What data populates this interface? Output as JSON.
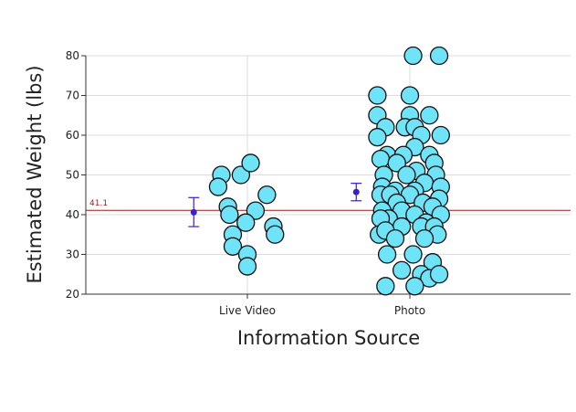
{
  "chart_data": {
    "type": "scatter",
    "title": "",
    "xlabel": "Information Source",
    "ylabel": "Estimated Weight (lbs)",
    "categories": [
      "Live Video",
      "Photo"
    ],
    "ylim": [
      20,
      80
    ],
    "yticks": [
      20,
      30,
      40,
      50,
      60,
      70,
      80
    ],
    "grid": true,
    "reference_line": {
      "value": 41.1,
      "label": "41.1",
      "color": "#9b1c1c"
    },
    "point_color": "#6fe3f7",
    "point_edge_color": "#111111",
    "summary_color": "#3b1fc8",
    "summaries": [
      {
        "category": "Live Video",
        "mean": 40.6,
        "lower": 37.0,
        "upper": 44.3
      },
      {
        "category": "Photo",
        "mean": 45.7,
        "lower": 43.5,
        "upper": 47.9
      }
    ],
    "series": [
      {
        "category": "Live Video",
        "points": [
          {
            "jitter": -0.16,
            "y": 50
          },
          {
            "jitter": -0.04,
            "y": 50
          },
          {
            "jitter": 0.02,
            "y": 53
          },
          {
            "jitter": -0.18,
            "y": 47
          },
          {
            "jitter": 0.12,
            "y": 45
          },
          {
            "jitter": -0.12,
            "y": 42
          },
          {
            "jitter": 0.05,
            "y": 41
          },
          {
            "jitter": -0.11,
            "y": 40
          },
          {
            "jitter": -0.01,
            "y": 38
          },
          {
            "jitter": 0.16,
            "y": 37
          },
          {
            "jitter": -0.09,
            "y": 35
          },
          {
            "jitter": 0.17,
            "y": 35
          },
          {
            "jitter": -0.09,
            "y": 32
          },
          {
            "jitter": 0.0,
            "y": 30
          },
          {
            "jitter": 0.0,
            "y": 27
          }
        ]
      },
      {
        "category": "Photo",
        "points": [
          {
            "jitter": 0.02,
            "y": 80
          },
          {
            "jitter": 0.18,
            "y": 80
          },
          {
            "jitter": -0.2,
            "y": 70
          },
          {
            "jitter": 0.0,
            "y": 70
          },
          {
            "jitter": -0.2,
            "y": 65
          },
          {
            "jitter": 0.0,
            "y": 65
          },
          {
            "jitter": 0.12,
            "y": 65
          },
          {
            "jitter": -0.15,
            "y": 62
          },
          {
            "jitter": -0.03,
            "y": 62
          },
          {
            "jitter": 0.03,
            "y": 62
          },
          {
            "jitter": -0.2,
            "y": 59.5
          },
          {
            "jitter": 0.07,
            "y": 60
          },
          {
            "jitter": 0.19,
            "y": 60
          },
          {
            "jitter": 0.03,
            "y": 57
          },
          {
            "jitter": -0.14,
            "y": 55
          },
          {
            "jitter": -0.04,
            "y": 55
          },
          {
            "jitter": 0.12,
            "y": 55
          },
          {
            "jitter": -0.18,
            "y": 54
          },
          {
            "jitter": -0.08,
            "y": 53
          },
          {
            "jitter": 0.15,
            "y": 53
          },
          {
            "jitter": 0.04,
            "y": 51
          },
          {
            "jitter": -0.16,
            "y": 50
          },
          {
            "jitter": -0.02,
            "y": 50
          },
          {
            "jitter": 0.16,
            "y": 50
          },
          {
            "jitter": 0.09,
            "y": 48
          },
          {
            "jitter": -0.17,
            "y": 47
          },
          {
            "jitter": 0.19,
            "y": 47
          },
          {
            "jitter": -0.09,
            "y": 46
          },
          {
            "jitter": 0.03,
            "y": 46
          },
          {
            "jitter": -0.18,
            "y": 45
          },
          {
            "jitter": -0.12,
            "y": 45
          },
          {
            "jitter": 0.0,
            "y": 45
          },
          {
            "jitter": 0.18,
            "y": 44
          },
          {
            "jitter": -0.08,
            "y": 43
          },
          {
            "jitter": 0.08,
            "y": 43
          },
          {
            "jitter": 0.14,
            "y": 42
          },
          {
            "jitter": -0.17,
            "y": 41
          },
          {
            "jitter": -0.05,
            "y": 41
          },
          {
            "jitter": 0.03,
            "y": 40
          },
          {
            "jitter": 0.19,
            "y": 40
          },
          {
            "jitter": -0.13,
            "y": 39
          },
          {
            "jitter": -0.18,
            "y": 39
          },
          {
            "jitter": 0.1,
            "y": 38
          },
          {
            "jitter": -0.05,
            "y": 37
          },
          {
            "jitter": 0.07,
            "y": 37
          },
          {
            "jitter": 0.15,
            "y": 37
          },
          {
            "jitter": -0.19,
            "y": 35
          },
          {
            "jitter": -0.15,
            "y": 36
          },
          {
            "jitter": 0.17,
            "y": 35
          },
          {
            "jitter": -0.09,
            "y": 34
          },
          {
            "jitter": 0.09,
            "y": 34
          },
          {
            "jitter": -0.14,
            "y": 30
          },
          {
            "jitter": 0.02,
            "y": 30
          },
          {
            "jitter": 0.14,
            "y": 28
          },
          {
            "jitter": -0.05,
            "y": 26
          },
          {
            "jitter": 0.07,
            "y": 25
          },
          {
            "jitter": 0.12,
            "y": 24
          },
          {
            "jitter": 0.18,
            "y": 25
          },
          {
            "jitter": -0.15,
            "y": 22
          },
          {
            "jitter": 0.03,
            "y": 22
          }
        ]
      }
    ]
  }
}
